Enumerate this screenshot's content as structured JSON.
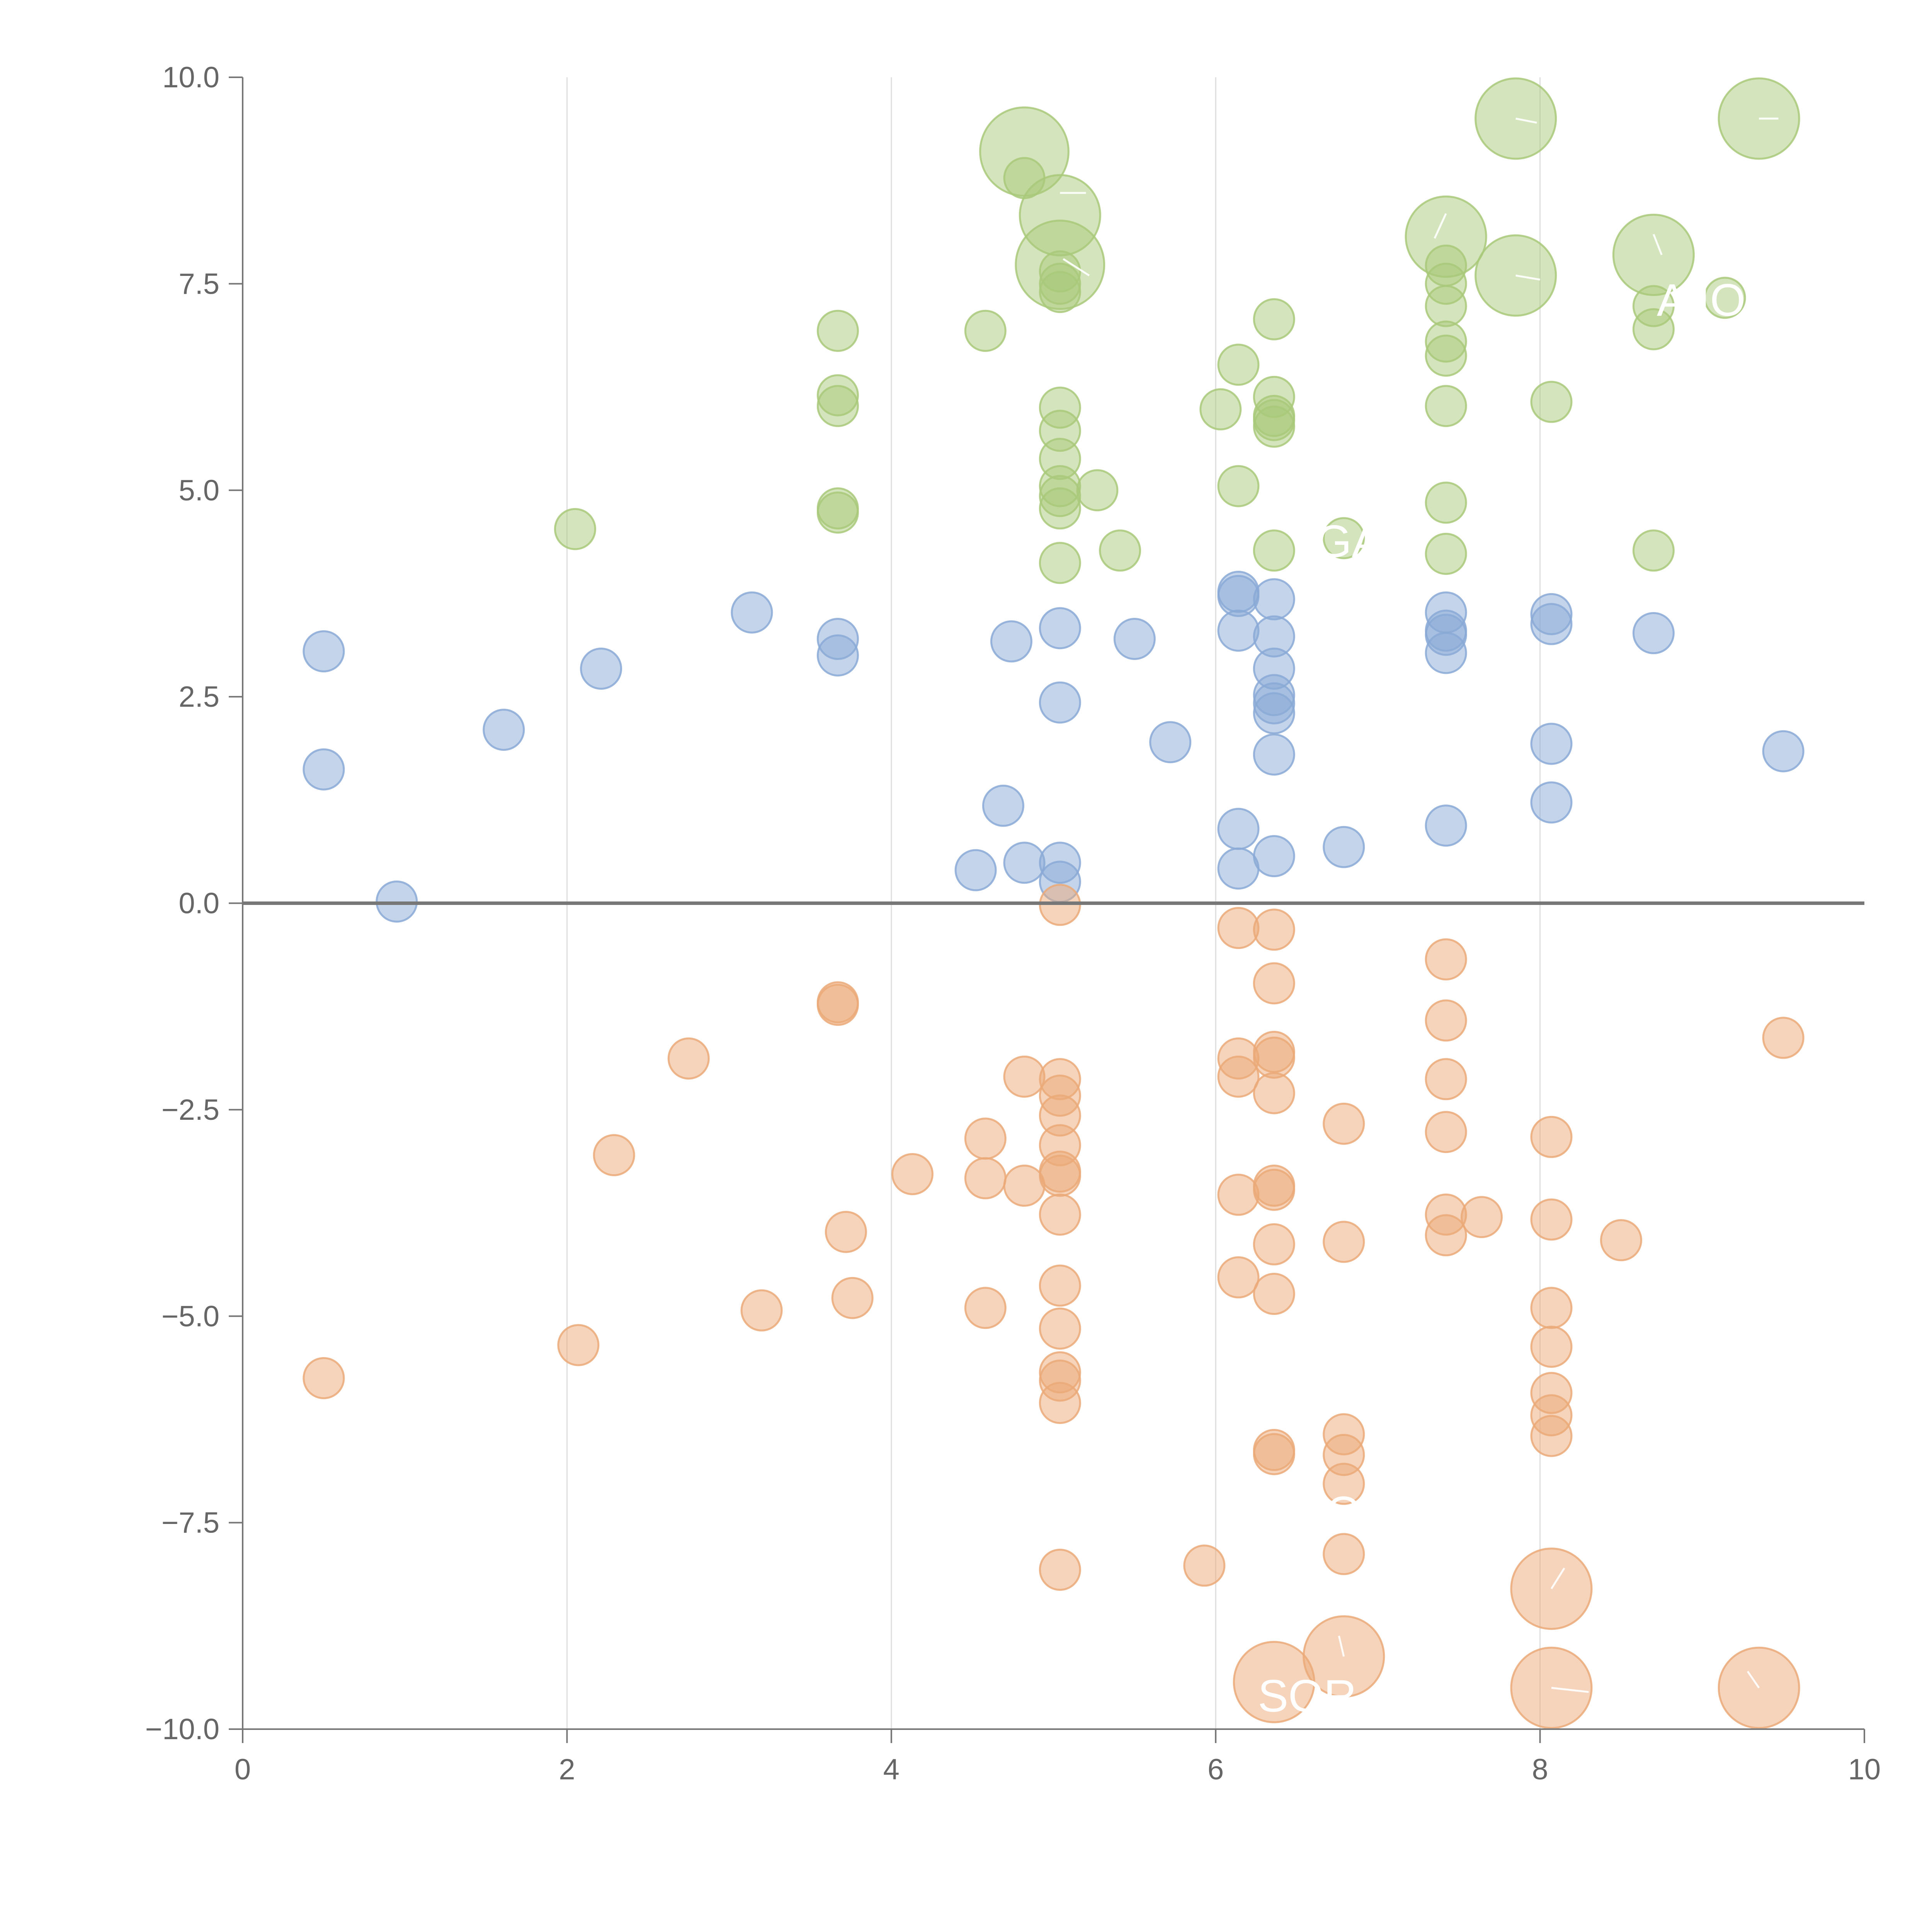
{
  "chart_data": {
    "type": "scatter",
    "title": "",
    "xlabel": "",
    "ylabel": "",
    "xlim": [
      0,
      10
    ],
    "ylim": [
      -10,
      10
    ],
    "grid": "vertical",
    "x_ticks": [
      "0",
      "2",
      "4",
      "6",
      "8",
      "10"
    ],
    "y_ticks": [
      "10.0",
      "7.5",
      "5.0",
      "2.5",
      "0.0",
      "−2.5",
      "−5.0",
      "−7.5",
      "−10.0"
    ],
    "zero_line": 0,
    "series": [
      {
        "name": "green",
        "color": "#a9c97a",
        "points": [
          {
            "x": 2.05,
            "y": 4.53,
            "s": 1
          },
          {
            "x": 3.67,
            "y": 6.93,
            "s": 1
          },
          {
            "x": 3.67,
            "y": 6.15,
            "s": 1
          },
          {
            "x": 3.67,
            "y": 6.02,
            "s": 1
          },
          {
            "x": 3.67,
            "y": 4.78,
            "s": 1
          },
          {
            "x": 3.67,
            "y": 4.73,
            "s": 1
          },
          {
            "x": 4.58,
            "y": 6.93,
            "s": 1
          },
          {
            "x": 4.82,
            "y": 8.78,
            "s": 1
          },
          {
            "x": 4.82,
            "y": 9.1,
            "s": 2.2
          },
          {
            "x": 5.04,
            "y": 8.33,
            "s": 2
          },
          {
            "x": 5.04,
            "y": 7.73,
            "s": 2.2
          },
          {
            "x": 5.04,
            "y": 7.65,
            "s": 1
          },
          {
            "x": 5.04,
            "y": 7.5,
            "s": 1
          },
          {
            "x": 5.04,
            "y": 7.4,
            "s": 1
          },
          {
            "x": 5.04,
            "y": 6.0,
            "s": 1
          },
          {
            "x": 5.04,
            "y": 5.72,
            "s": 1
          },
          {
            "x": 5.04,
            "y": 5.38,
            "s": 1
          },
          {
            "x": 5.04,
            "y": 5.05,
            "s": 1
          },
          {
            "x": 5.04,
            "y": 4.93,
            "s": 1
          },
          {
            "x": 5.04,
            "y": 4.78,
            "s": 1
          },
          {
            "x": 5.04,
            "y": 4.12,
            "s": 1
          },
          {
            "x": 5.27,
            "y": 5.0,
            "s": 1
          },
          {
            "x": 5.41,
            "y": 4.27,
            "s": 1
          },
          {
            "x": 6.03,
            "y": 5.98,
            "s": 1
          },
          {
            "x": 6.14,
            "y": 6.52,
            "s": 1
          },
          {
            "x": 6.14,
            "y": 5.05,
            "s": 1
          },
          {
            "x": 6.36,
            "y": 7.07,
            "s": 1
          },
          {
            "x": 6.36,
            "y": 6.13,
            "s": 1
          },
          {
            "x": 6.36,
            "y": 5.9,
            "s": 1
          },
          {
            "x": 6.36,
            "y": 5.85,
            "s": 1
          },
          {
            "x": 6.36,
            "y": 5.77,
            "s": 1
          },
          {
            "x": 6.36,
            "y": 4.27,
            "s": 1
          },
          {
            "x": 6.79,
            "y": 4.42,
            "s": 1
          },
          {
            "x": 7.42,
            "y": 8.07,
            "s": 2
          },
          {
            "x": 7.42,
            "y": 7.72,
            "s": 1
          },
          {
            "x": 7.42,
            "y": 7.5,
            "s": 1
          },
          {
            "x": 7.42,
            "y": 7.23,
            "s": 1
          },
          {
            "x": 7.42,
            "y": 6.8,
            "s": 1
          },
          {
            "x": 7.42,
            "y": 6.63,
            "s": 1
          },
          {
            "x": 7.42,
            "y": 6.02,
            "s": 1
          },
          {
            "x": 7.42,
            "y": 4.85,
            "s": 1
          },
          {
            "x": 7.42,
            "y": 4.23,
            "s": 1
          },
          {
            "x": 7.85,
            "y": 9.5,
            "s": 2
          },
          {
            "x": 7.85,
            "y": 7.6,
            "s": 2
          },
          {
            "x": 8.07,
            "y": 6.07,
            "s": 1
          },
          {
            "x": 8.7,
            "y": 7.85,
            "s": 2
          },
          {
            "x": 8.7,
            "y": 7.23,
            "s": 1
          },
          {
            "x": 8.7,
            "y": 6.95,
            "s": 1
          },
          {
            "x": 8.7,
            "y": 4.27,
            "s": 1
          },
          {
            "x": 9.14,
            "y": 7.33,
            "s": 1
          },
          {
            "x": 9.35,
            "y": 9.5,
            "s": 2
          }
        ]
      },
      {
        "name": "blue",
        "color": "#8aa9d6",
        "points": [
          {
            "x": 0.5,
            "y": 3.05,
            "s": 1
          },
          {
            "x": 0.5,
            "y": 1.62,
            "s": 1
          },
          {
            "x": 0.95,
            "y": 0.02,
            "s": 1
          },
          {
            "x": 1.61,
            "y": 2.1,
            "s": 1
          },
          {
            "x": 2.21,
            "y": 2.84,
            "s": 1
          },
          {
            "x": 3.14,
            "y": 3.52,
            "s": 1
          },
          {
            "x": 3.67,
            "y": 3.2,
            "s": 1
          },
          {
            "x": 3.67,
            "y": 3.0,
            "s": 1
          },
          {
            "x": 4.52,
            "y": 0.4,
            "s": 1
          },
          {
            "x": 4.69,
            "y": 1.18,
            "s": 1
          },
          {
            "x": 4.74,
            "y": 3.17,
            "s": 1
          },
          {
            "x": 4.82,
            "y": 0.49,
            "s": 1
          },
          {
            "x": 5.04,
            "y": 3.33,
            "s": 1
          },
          {
            "x": 5.04,
            "y": 2.43,
            "s": 1
          },
          {
            "x": 5.04,
            "y": 0.49,
            "s": 1
          },
          {
            "x": 5.04,
            "y": 0.26,
            "s": 1
          },
          {
            "x": 5.5,
            "y": 3.2,
            "s": 1
          },
          {
            "x": 5.72,
            "y": 1.95,
            "s": 1
          },
          {
            "x": 6.14,
            "y": 3.77,
            "s": 1
          },
          {
            "x": 6.14,
            "y": 3.72,
            "s": 1
          },
          {
            "x": 6.14,
            "y": 3.3,
            "s": 1
          },
          {
            "x": 6.14,
            "y": 0.9,
            "s": 1
          },
          {
            "x": 6.14,
            "y": 0.42,
            "s": 1
          },
          {
            "x": 6.36,
            "y": 3.68,
            "s": 1
          },
          {
            "x": 6.36,
            "y": 3.23,
            "s": 1
          },
          {
            "x": 6.36,
            "y": 2.84,
            "s": 1
          },
          {
            "x": 6.36,
            "y": 2.52,
            "s": 1
          },
          {
            "x": 6.36,
            "y": 2.42,
            "s": 1
          },
          {
            "x": 6.36,
            "y": 2.3,
            "s": 1
          },
          {
            "x": 6.36,
            "y": 1.8,
            "s": 1
          },
          {
            "x": 6.36,
            "y": 0.57,
            "s": 1
          },
          {
            "x": 6.79,
            "y": 0.68,
            "s": 1
          },
          {
            "x": 7.42,
            "y": 3.52,
            "s": 1
          },
          {
            "x": 7.42,
            "y": 3.3,
            "s": 1
          },
          {
            "x": 7.42,
            "y": 3.25,
            "s": 1
          },
          {
            "x": 7.42,
            "y": 3.03,
            "s": 1
          },
          {
            "x": 7.42,
            "y": 0.94,
            "s": 1
          },
          {
            "x": 8.07,
            "y": 3.5,
            "s": 1
          },
          {
            "x": 8.07,
            "y": 3.38,
            "s": 1
          },
          {
            "x": 8.07,
            "y": 1.93,
            "s": 1
          },
          {
            "x": 8.07,
            "y": 1.22,
            "s": 1
          },
          {
            "x": 8.7,
            "y": 3.27,
            "s": 1
          },
          {
            "x": 9.5,
            "y": 1.84,
            "s": 1
          }
        ]
      },
      {
        "name": "orange",
        "color": "#eba978",
        "points": [
          {
            "x": 0.5,
            "y": -5.75,
            "s": 1
          },
          {
            "x": 2.07,
            "y": -5.35,
            "s": 1
          },
          {
            "x": 2.29,
            "y": -3.05,
            "s": 1
          },
          {
            "x": 2.75,
            "y": -1.88,
            "s": 1
          },
          {
            "x": 3.2,
            "y": -4.93,
            "s": 1
          },
          {
            "x": 3.67,
            "y": -1.2,
            "s": 1
          },
          {
            "x": 3.67,
            "y": -1.23,
            "s": 1
          },
          {
            "x": 3.72,
            "y": -3.98,
            "s": 1
          },
          {
            "x": 3.76,
            "y": -4.78,
            "s": 1
          },
          {
            "x": 4.13,
            "y": -3.28,
            "s": 1
          },
          {
            "x": 4.58,
            "y": -2.85,
            "s": 1
          },
          {
            "x": 4.58,
            "y": -3.33,
            "s": 1
          },
          {
            "x": 4.58,
            "y": -4.9,
            "s": 1
          },
          {
            "x": 4.82,
            "y": -2.1,
            "s": 1
          },
          {
            "x": 4.82,
            "y": -3.42,
            "s": 1
          },
          {
            "x": 5.04,
            "y": -0.02,
            "s": 1
          },
          {
            "x": 5.04,
            "y": -2.13,
            "s": 1
          },
          {
            "x": 5.04,
            "y": -2.33,
            "s": 1
          },
          {
            "x": 5.04,
            "y": -2.57,
            "s": 1
          },
          {
            "x": 5.04,
            "y": -2.93,
            "s": 1
          },
          {
            "x": 5.04,
            "y": -3.25,
            "s": 1
          },
          {
            "x": 5.04,
            "y": -3.3,
            "s": 1
          },
          {
            "x": 5.04,
            "y": -3.77,
            "s": 1
          },
          {
            "x": 5.04,
            "y": -4.63,
            "s": 1
          },
          {
            "x": 5.04,
            "y": -5.15,
            "s": 1
          },
          {
            "x": 5.04,
            "y": -5.68,
            "s": 1
          },
          {
            "x": 5.04,
            "y": -5.78,
            "s": 1
          },
          {
            "x": 5.04,
            "y": -6.05,
            "s": 1
          },
          {
            "x": 5.04,
            "y": -8.07,
            "s": 1
          },
          {
            "x": 5.93,
            "y": -8.02,
            "s": 1
          },
          {
            "x": 6.14,
            "y": -0.3,
            "s": 1
          },
          {
            "x": 6.14,
            "y": -1.88,
            "s": 1
          },
          {
            "x": 6.14,
            "y": -2.1,
            "s": 1
          },
          {
            "x": 6.14,
            "y": -3.53,
            "s": 1
          },
          {
            "x": 6.14,
            "y": -4.53,
            "s": 1
          },
          {
            "x": 6.36,
            "y": -0.32,
            "s": 1
          },
          {
            "x": 6.36,
            "y": -0.97,
            "s": 1
          },
          {
            "x": 6.36,
            "y": -1.8,
            "s": 1
          },
          {
            "x": 6.36,
            "y": -1.87,
            "s": 1
          },
          {
            "x": 6.36,
            "y": -2.3,
            "s": 1
          },
          {
            "x": 6.36,
            "y": -3.42,
            "s": 1
          },
          {
            "x": 6.36,
            "y": -3.47,
            "s": 1
          },
          {
            "x": 6.36,
            "y": -4.13,
            "s": 1
          },
          {
            "x": 6.36,
            "y": -4.73,
            "s": 1
          },
          {
            "x": 6.36,
            "y": -6.62,
            "s": 1
          },
          {
            "x": 6.36,
            "y": -6.67,
            "s": 1
          },
          {
            "x": 6.36,
            "y": -9.43,
            "s": 2
          },
          {
            "x": 6.79,
            "y": -2.67,
            "s": 1
          },
          {
            "x": 6.79,
            "y": -4.1,
            "s": 1
          },
          {
            "x": 6.79,
            "y": -6.43,
            "s": 1
          },
          {
            "x": 6.79,
            "y": -6.68,
            "s": 1
          },
          {
            "x": 6.79,
            "y": -7.03,
            "s": 1
          },
          {
            "x": 6.79,
            "y": -7.88,
            "s": 1
          },
          {
            "x": 6.79,
            "y": -9.12,
            "s": 2
          },
          {
            "x": 7.42,
            "y": -0.68,
            "s": 1
          },
          {
            "x": 7.42,
            "y": -1.42,
            "s": 1
          },
          {
            "x": 7.42,
            "y": -2.13,
            "s": 1
          },
          {
            "x": 7.42,
            "y": -2.77,
            "s": 1
          },
          {
            "x": 7.42,
            "y": -3.77,
            "s": 1
          },
          {
            "x": 7.42,
            "y": -4.02,
            "s": 1
          },
          {
            "x": 7.64,
            "y": -3.8,
            "s": 1
          },
          {
            "x": 8.07,
            "y": -2.83,
            "s": 1
          },
          {
            "x": 8.07,
            "y": -3.83,
            "s": 1
          },
          {
            "x": 8.07,
            "y": -4.9,
            "s": 1
          },
          {
            "x": 8.07,
            "y": -5.37,
            "s": 1
          },
          {
            "x": 8.07,
            "y": -5.93,
            "s": 1
          },
          {
            "x": 8.07,
            "y": -6.2,
            "s": 1
          },
          {
            "x": 8.07,
            "y": -6.45,
            "s": 1
          },
          {
            "x": 8.07,
            "y": -8.3,
            "s": 2
          },
          {
            "x": 8.07,
            "y": -9.5,
            "s": 2
          },
          {
            "x": 8.5,
            "y": -4.08,
            "s": 1
          },
          {
            "x": 9.35,
            "y": -9.5,
            "s": 2
          },
          {
            "x": 9.5,
            "y": -1.63,
            "s": 1
          }
        ]
      }
    ],
    "annotations": [
      {
        "text": "A IO",
        "x": 8.72,
        "y": 7.3
      },
      {
        "text": "SOR",
        "x": 6.26,
        "y": -9.6
      },
      {
        "text": "O",
        "x": 6.68,
        "y": -7.38
      },
      {
        "text": "GA",
        "x": 6.62,
        "y": 4.38
      }
    ],
    "leader_lines": [
      {
        "x1": 5.04,
        "y1": 8.6,
        "x2": 5.2,
        "y2": 8.6
      },
      {
        "x1": 5.06,
        "y1": 7.8,
        "x2": 5.22,
        "y2": 7.6
      },
      {
        "x1": 7.42,
        "y1": 8.35,
        "x2": 7.35,
        "y2": 8.05
      },
      {
        "x1": 7.85,
        "y1": 9.5,
        "x2": 7.98,
        "y2": 9.45
      },
      {
        "x1": 7.85,
        "y1": 7.6,
        "x2": 8.0,
        "y2": 7.55
      },
      {
        "x1": 8.7,
        "y1": 8.1,
        "x2": 8.75,
        "y2": 7.85
      },
      {
        "x1": 9.35,
        "y1": 9.5,
        "x2": 9.47,
        "y2": 9.5
      },
      {
        "x1": 8.07,
        "y1": -8.3,
        "x2": 8.15,
        "y2": -8.05
      },
      {
        "x1": 6.79,
        "y1": -9.12,
        "x2": 6.76,
        "y2": -8.87
      },
      {
        "x1": 8.07,
        "y1": -9.5,
        "x2": 8.3,
        "y2": -9.55
      },
      {
        "x1": 9.35,
        "y1": -9.5,
        "x2": 9.28,
        "y2": -9.3
      }
    ]
  }
}
